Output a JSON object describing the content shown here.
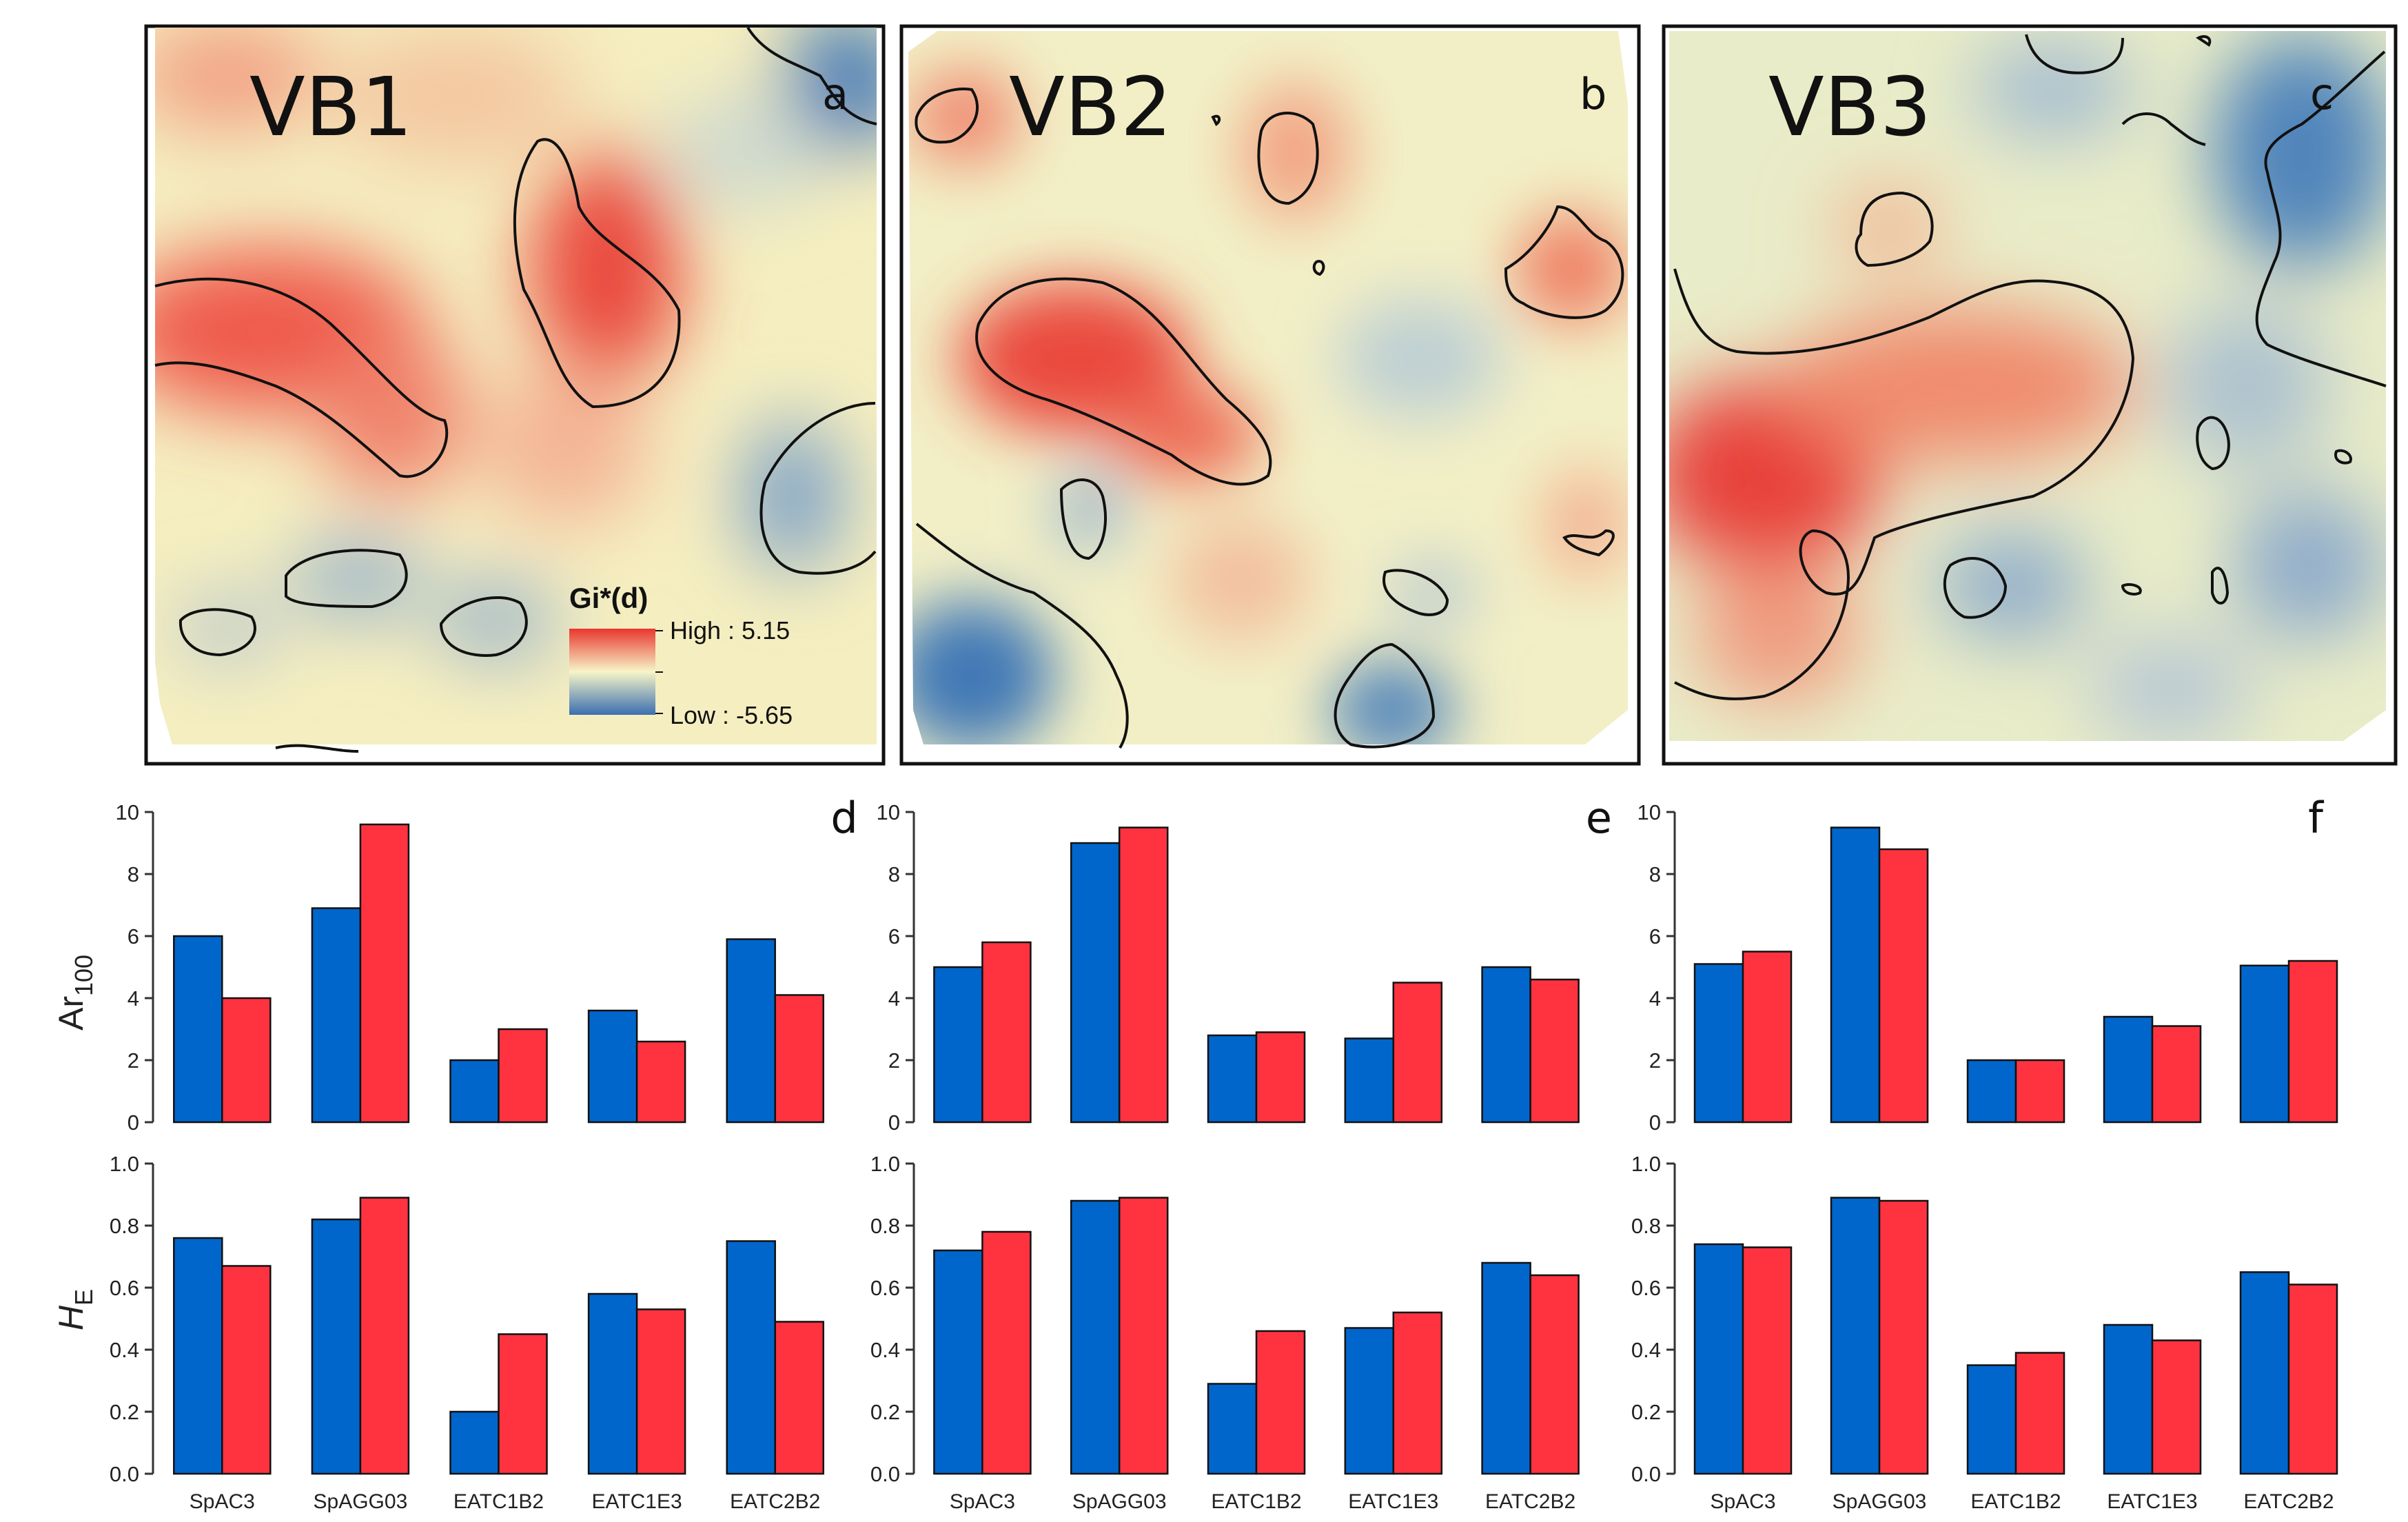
{
  "maps": [
    {
      "title": "VB1",
      "letter": "a"
    },
    {
      "title": "VB2",
      "letter": "b"
    },
    {
      "title": "VB3",
      "letter": "c"
    }
  ],
  "legend": {
    "title": "Gi*(d)",
    "high_label": "High : 5.15",
    "low_label": "Low : -5.65",
    "high_value": 5.15,
    "low_value": -5.65,
    "colors": {
      "high": "#e8372e",
      "mid": "#f7f5c8",
      "low": "#3a6fb0"
    }
  },
  "colors": {
    "blue": "#0066cc",
    "red": "#ff3340"
  },
  "ylabels": {
    "ar_main": "Ar",
    "ar_sub": "100",
    "he_main": "H",
    "he_sub": "E"
  },
  "chart_data": [
    {
      "type": "bar",
      "letter": "d",
      "row": "Ar100",
      "categories": [
        "SpAC3",
        "SpAGG03",
        "EATC1B2",
        "EATC1E3",
        "EATC2B2"
      ],
      "ylim": [
        0,
        10
      ],
      "yticks": [
        "0",
        "2",
        "4",
        "6",
        "8",
        "10"
      ],
      "series": [
        {
          "name": "blue",
          "values": [
            6.0,
            6.9,
            2.0,
            3.6,
            5.9
          ]
        },
        {
          "name": "red",
          "values": [
            4.0,
            9.6,
            3.0,
            2.6,
            4.1
          ]
        }
      ]
    },
    {
      "type": "bar",
      "letter": "e",
      "row": "Ar100",
      "categories": [
        "SpAC3",
        "SpAGG03",
        "EATC1B2",
        "EATC1E3",
        "EATC2B2"
      ],
      "ylim": [
        0,
        10
      ],
      "yticks": [
        "0",
        "2",
        "4",
        "6",
        "8",
        "10"
      ],
      "series": [
        {
          "name": "blue",
          "values": [
            5.0,
            9.0,
            2.8,
            2.7,
            5.0
          ]
        },
        {
          "name": "red",
          "values": [
            5.8,
            9.5,
            2.9,
            4.5,
            4.6
          ]
        }
      ]
    },
    {
      "type": "bar",
      "letter": "f",
      "row": "Ar100",
      "categories": [
        "SpAC3",
        "SpAGG03",
        "EATC1B2",
        "EATC1E3",
        "EATC2B2"
      ],
      "ylim": [
        0,
        10
      ],
      "yticks": [
        "0",
        "2",
        "4",
        "6",
        "8",
        "10"
      ],
      "series": [
        {
          "name": "blue",
          "values": [
            5.1,
            9.5,
            2.0,
            3.4,
            5.05
          ]
        },
        {
          "name": "red",
          "values": [
            5.5,
            8.8,
            2.0,
            3.1,
            5.2
          ]
        }
      ]
    },
    {
      "type": "bar",
      "letter": "",
      "row": "HE",
      "categories": [
        "SpAC3",
        "SpAGG03",
        "EATC1B2",
        "EATC1E3",
        "EATC2B2"
      ],
      "ylim": [
        0,
        1
      ],
      "yticks": [
        "0.0",
        "0.2",
        "0.4",
        "0.6",
        "0.8",
        "1.0"
      ],
      "series": [
        {
          "name": "blue",
          "values": [
            0.76,
            0.82,
            0.2,
            0.58,
            0.75
          ]
        },
        {
          "name": "red",
          "values": [
            0.67,
            0.89,
            0.45,
            0.53,
            0.49
          ]
        }
      ]
    },
    {
      "type": "bar",
      "letter": "",
      "row": "HE",
      "categories": [
        "SpAC3",
        "SpAGG03",
        "EATC1B2",
        "EATC1E3",
        "EATC2B2"
      ],
      "ylim": [
        0,
        1
      ],
      "yticks": [
        "0.0",
        "0.2",
        "0.4",
        "0.6",
        "0.8",
        "1.0"
      ],
      "series": [
        {
          "name": "blue",
          "values": [
            0.72,
            0.88,
            0.29,
            0.47,
            0.68
          ]
        },
        {
          "name": "red",
          "values": [
            0.78,
            0.89,
            0.46,
            0.52,
            0.64
          ]
        }
      ]
    },
    {
      "type": "bar",
      "letter": "",
      "row": "HE",
      "categories": [
        "SpAC3",
        "SpAGG03",
        "EATC1B2",
        "EATC1E3",
        "EATC2B2"
      ],
      "ylim": [
        0,
        1
      ],
      "yticks": [
        "0.0",
        "0.2",
        "0.4",
        "0.6",
        "0.8",
        "1.0"
      ],
      "series": [
        {
          "name": "blue",
          "values": [
            0.74,
            0.89,
            0.35,
            0.48,
            0.65
          ]
        },
        {
          "name": "red",
          "values": [
            0.73,
            0.88,
            0.39,
            0.43,
            0.61
          ]
        }
      ]
    }
  ]
}
